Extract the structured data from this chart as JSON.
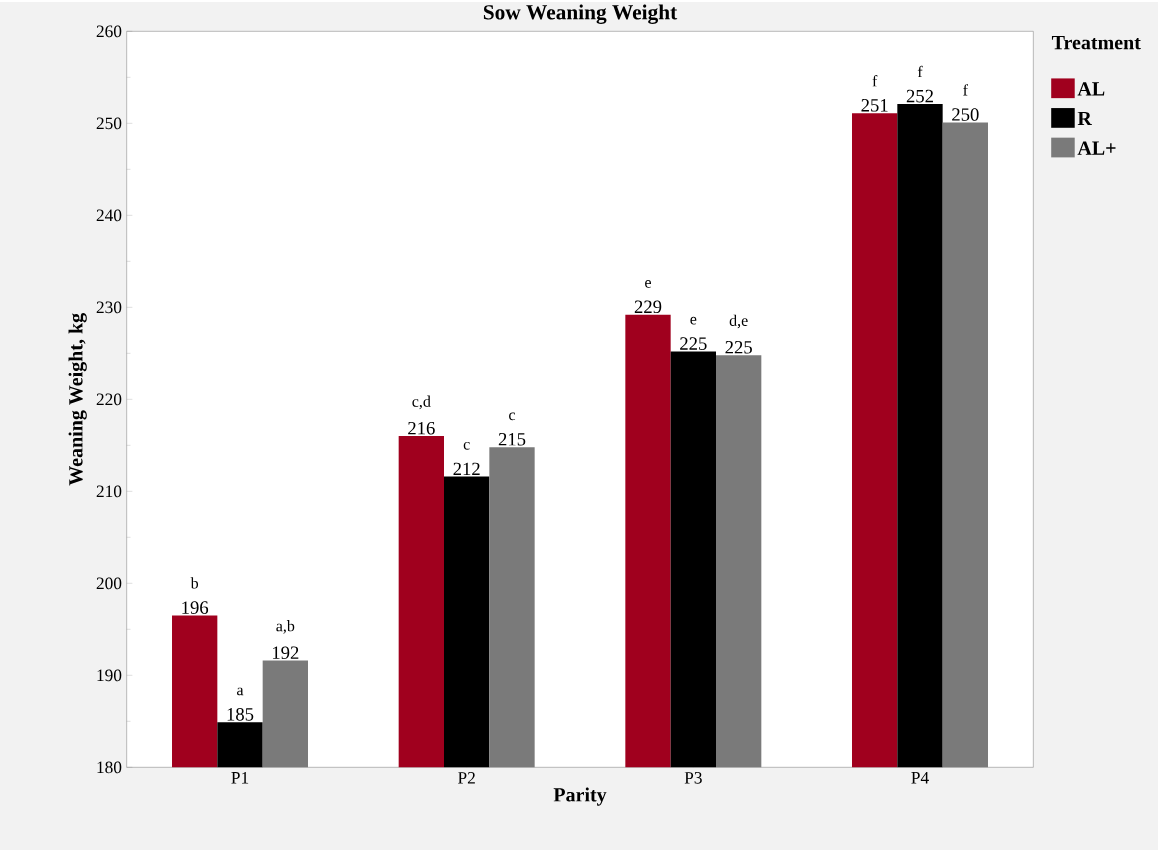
{
  "chart_data": {
    "type": "bar",
    "title": "Sow Weaning Weight",
    "xlabel": "Parity",
    "ylabel": "Weaning Weight, kg",
    "legend_title": "Treatment",
    "legend": "right",
    "categories": [
      "P1",
      "P2",
      "P3",
      "P4"
    ],
    "series": [
      {
        "name": "AL",
        "color": "#a0001e",
        "values": [
          196.5,
          216,
          229.2,
          251.1
        ],
        "value_labels": [
          "196",
          "216",
          "229",
          "251"
        ]
      },
      {
        "name": "R",
        "color": "#000000",
        "values": [
          184.9,
          211.6,
          225.2,
          252.1
        ],
        "value_labels": [
          "185",
          "212",
          "225",
          "252"
        ]
      },
      {
        "name": "AL+",
        "color": "#7a7a7a",
        "values": [
          191.6,
          214.8,
          224.8,
          250.1
        ],
        "value_labels": [
          "192",
          "215",
          "225",
          "250"
        ]
      }
    ],
    "ylim": [
      180,
      260
    ],
    "yticks": [
      180,
      190,
      200,
      210,
      220,
      230,
      240,
      250,
      260
    ],
    "annotations": [
      "b",
      "a",
      "a,b",
      "c,d",
      "c",
      "c",
      "e",
      "e",
      "d,e",
      "f",
      "f",
      "f"
    ]
  }
}
